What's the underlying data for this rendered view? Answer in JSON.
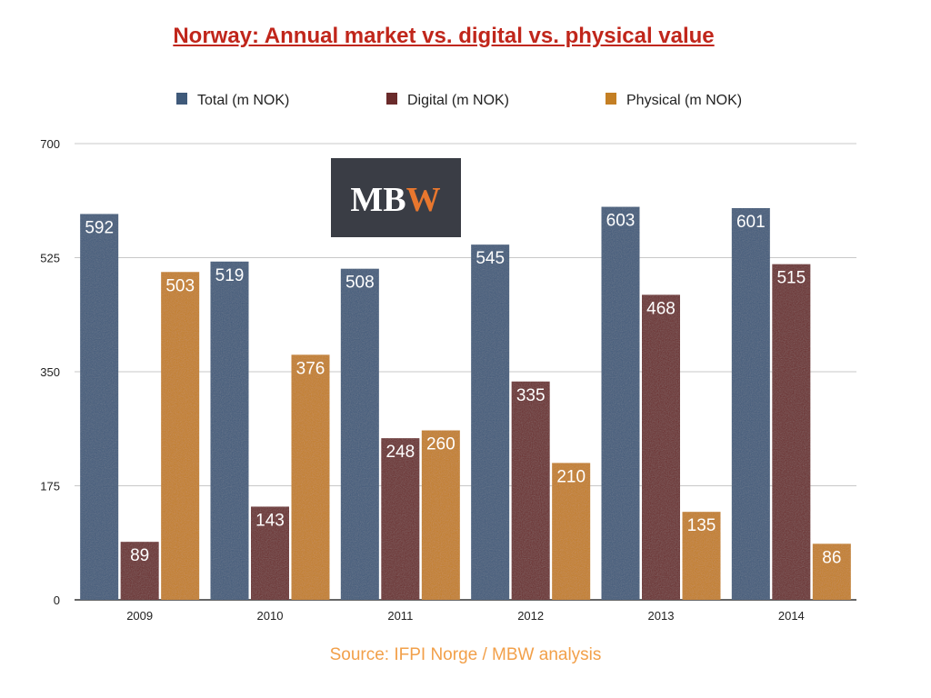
{
  "chart_data": {
    "type": "bar",
    "title": "Norway: Annual market vs. digital vs. physical value",
    "categories": [
      "2009",
      "2010",
      "2011",
      "2012",
      "2013",
      "2014"
    ],
    "series": [
      {
        "name": "Total (m NOK)",
        "values": [
          592,
          519,
          508,
          545,
          603,
          601
        ],
        "color": "#3f5a7a"
      },
      {
        "name": "Digital (m NOK)",
        "values": [
          89,
          143,
          248,
          335,
          468,
          515
        ],
        "color": "#6a2b2b"
      },
      {
        "name": "Physical (m NOK)",
        "values": [
          503,
          376,
          260,
          210,
          135,
          86
        ],
        "color": "#c47f24"
      }
    ],
    "ylim": [
      0,
      700
    ],
    "yticks": [
      0,
      175,
      350,
      525,
      700
    ],
    "grid": true,
    "legend_position": "top",
    "xlabel": "",
    "ylabel": ""
  },
  "source": "Source: IFPI Norge / MBW analysis",
  "logo": {
    "part1": "MB",
    "part2": "W",
    "color1": "#ffffff",
    "color2": "#e8772e",
    "background": "#3a3d45"
  }
}
